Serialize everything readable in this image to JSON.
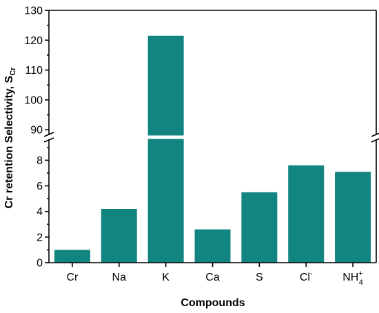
{
  "chart_data": {
    "type": "bar",
    "xlabel": "Compounds",
    "ylabel": "Cr retention Selectivity, S",
    "ylabel_subscript": "Cr",
    "categories": [
      "Cr",
      "Na",
      "K",
      "Ca",
      "S",
      "Cl",
      "NH"
    ],
    "category_superscripts": [
      "",
      "",
      "",
      "",
      "",
      "-",
      "+"
    ],
    "category_subscripts": [
      "",
      "",
      "",
      "",
      "",
      "",
      "4"
    ],
    "values": [
      1.0,
      4.2,
      121.5,
      2.6,
      5.5,
      7.6,
      7.1
    ],
    "bar_color": "#138580",
    "y_axis_break": true,
    "ylim_lower": [
      0,
      9.8
    ],
    "ylim_upper": [
      87.5,
      130
    ],
    "yticks_lower": [
      "0",
      "2",
      "4",
      "6",
      "8"
    ],
    "yticks_upper": [
      "90",
      "100",
      "110",
      "120",
      "130"
    ],
    "grid": false,
    "legend": "none"
  }
}
